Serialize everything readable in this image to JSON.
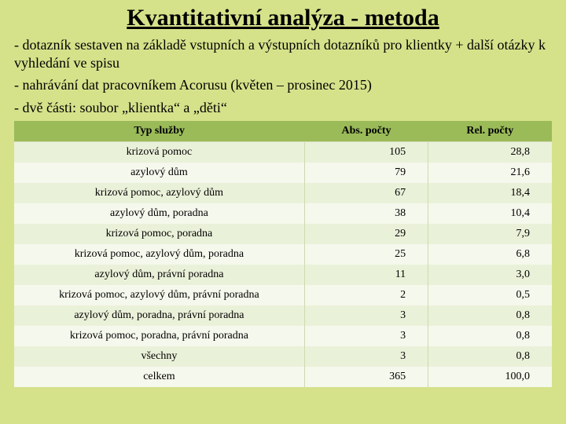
{
  "title": "Kvantitativní analýza - metoda",
  "paragraphs": [
    "- dotazník sestaven na základě vstupních a výstupních dotazníků pro klientky + další otázky k vyhledání ve spisu",
    "- nahrávání dat pracovníkem Acorusu (květen – prosinec 2015)",
    "- dvě části: soubor „klientka“ a „děti“"
  ],
  "table": {
    "columns": [
      "Typ služby",
      "Abs. počty",
      "Rel. počty"
    ],
    "col_widths_pct": [
      54,
      23,
      23
    ],
    "col_align": [
      "center",
      "right",
      "right"
    ],
    "rows": [
      [
        "krizová pomoc",
        "105",
        "28,8"
      ],
      [
        "azylový dům",
        "79",
        "21,6"
      ],
      [
        "krizová pomoc, azylový dům",
        "67",
        "18,4"
      ],
      [
        "azylový dům, poradna",
        "38",
        "10,4"
      ],
      [
        "krizová pomoc, poradna",
        "29",
        "7,9"
      ],
      [
        "krizová pomoc, azylový dům, poradna",
        "25",
        "6,8"
      ],
      [
        "azylový dům, právní poradna",
        "11",
        "3,0"
      ],
      [
        "krizová pomoc, azylový dům, právní poradna",
        "2",
        "0,5"
      ],
      [
        "azylový dům, poradna, právní poradna",
        "3",
        "0,8"
      ],
      [
        "krizová pomoc, poradna, právní poradna",
        "3",
        "0,8"
      ],
      [
        "všechny",
        "3",
        "0,8"
      ],
      [
        "celkem",
        "365",
        "100,0"
      ]
    ],
    "header_bg": "#9bbb59",
    "row_odd_bg": "#eaf1d9",
    "row_even_bg": "#f5f8ec",
    "border_color": "#d0d8b0",
    "font_size": 14,
    "header_font_weight": "bold"
  },
  "styling": {
    "page_bg": "#d5e28a",
    "title_fontsize": 30,
    "title_underline": true,
    "para_fontsize": 18,
    "font_family": "Book Antiqua / Georgia"
  }
}
